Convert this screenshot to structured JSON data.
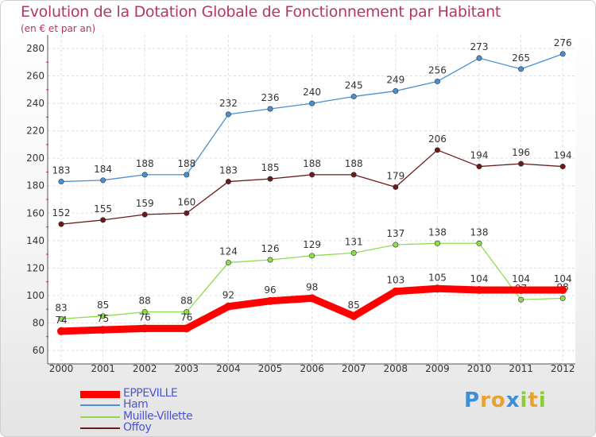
{
  "chart_data": {
    "type": "line",
    "title": "Evolution de la Dotation Globale de Fonctionnement par Habitant",
    "subtitle": "(en € et par an)",
    "xlabel": "",
    "ylabel": "",
    "categories": [
      "2000",
      "2001",
      "2002",
      "2003",
      "2004",
      "2005",
      "2006",
      "2007",
      "2008",
      "2009",
      "2010",
      "2011",
      "2012"
    ],
    "y_ticks": [
      60,
      80,
      100,
      120,
      140,
      160,
      180,
      200,
      220,
      240,
      260,
      280
    ],
    "ylim": [
      60,
      280
    ],
    "grid": true,
    "legend_position": "bottom-left",
    "series": [
      {
        "name": "Ham",
        "color": "#4a8fd0",
        "values": [
          183,
          184,
          188,
          188,
          232,
          236,
          240,
          245,
          249,
          256,
          273,
          265,
          276
        ],
        "labels": [
          "183",
          "184",
          "188",
          "188",
          "232",
          "236",
          "240",
          "245",
          "249",
          "256",
          "273",
          "265",
          "276"
        ]
      },
      {
        "name": "Offoy",
        "color": "#6b1a1a",
        "values": [
          152,
          155,
          159,
          160,
          183,
          185,
          188,
          188,
          179,
          206,
          194,
          196,
          194
        ],
        "labels": [
          "152",
          "155",
          "159",
          "160",
          "183",
          "185",
          "188",
          "188",
          "179",
          "206",
          "194",
          "196",
          "194"
        ]
      },
      {
        "name": "Muille-Villette",
        "color": "#8ede4a",
        "values": [
          83,
          85,
          88,
          88,
          124,
          126,
          129,
          131,
          137,
          138,
          138,
          97,
          98
        ],
        "labels": [
          "83",
          "85",
          "88",
          "88",
          "124",
          "126",
          "129",
          "131",
          "137",
          "138",
          "138",
          "97",
          "98"
        ]
      },
      {
        "name": "EPPEVILLE",
        "color": "#ff0000",
        "values": [
          74,
          75,
          76,
          76,
          92,
          96,
          98,
          85,
          103,
          105,
          104,
          104,
          104
        ],
        "labels": [
          "74",
          "75",
          "76",
          "76",
          "92",
          "96",
          "98",
          "85",
          "103",
          "105",
          "104",
          "104",
          "104"
        ]
      }
    ],
    "legend": [
      "EPPEVILLE",
      "Ham",
      "Muille-Villette",
      "Offoy"
    ]
  },
  "logo": {
    "text": "Proxiti",
    "colors": [
      "#3d8fd8",
      "#e8a22f",
      "#e8a22f",
      "#3d8fd8",
      "#8ccc3a",
      "#e8a22f",
      "#8ccc3a"
    ]
  }
}
